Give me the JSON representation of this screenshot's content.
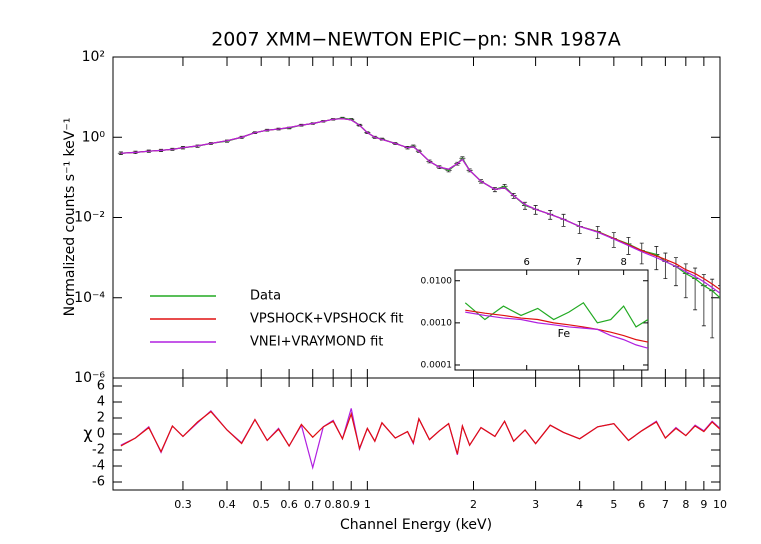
{
  "chart_data": [
    {
      "type": "line",
      "title": "2007 XMM−NEWTON EPIC−pn: SNR 1987A",
      "ylabel": "Normalized counts s⁻¹ keV⁻¹",
      "log_x": true,
      "log_y": true,
      "xlim": [
        0.19,
        10
      ],
      "ylim": [
        1e-06,
        100
      ],
      "yticks": [
        {
          "value": 1e-06,
          "label": "10⁻⁶"
        },
        {
          "value": 0.0001,
          "label": "10⁻⁴"
        },
        {
          "value": 0.01,
          "label": "10⁻²"
        },
        {
          "value": 1,
          "label": "10⁰"
        },
        {
          "value": 100,
          "label": "10²"
        }
      ],
      "legend": "lower left",
      "x": [
        0.2,
        0.22,
        0.24,
        0.26,
        0.28,
        0.3,
        0.33,
        0.36,
        0.4,
        0.44,
        0.48,
        0.52,
        0.56,
        0.6,
        0.65,
        0.7,
        0.75,
        0.8,
        0.85,
        0.9,
        0.95,
        1.0,
        1.05,
        1.1,
        1.2,
        1.3,
        1.35,
        1.4,
        1.5,
        1.6,
        1.7,
        1.8,
        1.86,
        1.95,
        2.1,
        2.3,
        2.45,
        2.6,
        2.8,
        3.0,
        3.3,
        3.6,
        4.0,
        4.5,
        5.0,
        5.5,
        6.0,
        6.6,
        7.0,
        7.5,
        8.0,
        8.5,
        9.0,
        9.5,
        10.0
      ],
      "series": [
        {
          "name": "Data",
          "color": "#22aa22",
          "values": [
            0.4,
            0.42,
            0.45,
            0.47,
            0.5,
            0.55,
            0.6,
            0.7,
            0.8,
            1.0,
            1.3,
            1.5,
            1.6,
            1.7,
            2.0,
            2.2,
            2.5,
            2.8,
            3.0,
            2.8,
            2.0,
            1.3,
            1.0,
            0.9,
            0.7,
            0.55,
            0.6,
            0.45,
            0.25,
            0.18,
            0.15,
            0.22,
            0.3,
            0.15,
            0.08,
            0.05,
            0.06,
            0.035,
            0.02,
            0.016,
            0.012,
            0.009,
            0.006,
            0.0045,
            0.003,
            0.0022,
            0.0015,
            0.0012,
            0.0008,
            0.0006,
            0.0004,
            0.0003,
            0.0002,
            0.00015,
            0.0001
          ],
          "errors": [
            0.03,
            0.03,
            0.03,
            0.03,
            0.03,
            0.04,
            0.04,
            0.04,
            0.05,
            0.06,
            0.07,
            0.08,
            0.08,
            0.08,
            0.1,
            0.1,
            0.12,
            0.13,
            0.14,
            0.13,
            0.1,
            0.07,
            0.06,
            0.05,
            0.04,
            0.04,
            0.04,
            0.03,
            0.02,
            0.015,
            0.013,
            0.018,
            0.025,
            0.013,
            0.008,
            0.006,
            0.007,
            0.005,
            0.004,
            0.004,
            0.003,
            0.003,
            0.002,
            0.0015,
            0.0012,
            0.001,
            0.0008,
            0.0007,
            0.0005,
            0.0004,
            0.0003,
            0.00025,
            0.00018,
            0.00014,
            0.0001
          ]
        },
        {
          "name": "VPSHOCK+VPSHOCK fit",
          "color": "#e01010",
          "values": [
            0.4,
            0.42,
            0.45,
            0.47,
            0.5,
            0.55,
            0.61,
            0.7,
            0.82,
            1.0,
            1.3,
            1.5,
            1.6,
            1.75,
            2.0,
            2.2,
            2.5,
            2.8,
            2.9,
            2.7,
            2.0,
            1.3,
            1.0,
            0.88,
            0.7,
            0.55,
            0.58,
            0.45,
            0.25,
            0.18,
            0.16,
            0.22,
            0.28,
            0.15,
            0.08,
            0.05,
            0.055,
            0.035,
            0.021,
            0.016,
            0.012,
            0.009,
            0.006,
            0.0044,
            0.003,
            0.0021,
            0.0015,
            0.0011,
            0.0009,
            0.0007,
            0.0005,
            0.0004,
            0.0003,
            0.00022,
            0.00016
          ]
        },
        {
          "name": "VNEI+VRAYMOND fit",
          "color": "#b020e0",
          "values": [
            0.4,
            0.42,
            0.45,
            0.47,
            0.5,
            0.55,
            0.61,
            0.7,
            0.82,
            1.0,
            1.3,
            1.5,
            1.6,
            1.75,
            2.0,
            2.2,
            2.5,
            2.8,
            2.9,
            2.7,
            2.0,
            1.3,
            1.0,
            0.88,
            0.7,
            0.55,
            0.58,
            0.45,
            0.25,
            0.18,
            0.16,
            0.22,
            0.28,
            0.15,
            0.08,
            0.05,
            0.055,
            0.035,
            0.021,
            0.016,
            0.012,
            0.009,
            0.006,
            0.0043,
            0.0029,
            0.002,
            0.0014,
            0.001,
            0.0008,
            0.0006,
            0.00045,
            0.00034,
            0.00025,
            0.00018,
            0.00013
          ]
        }
      ]
    },
    {
      "type": "line",
      "xlabel": "Channel Energy (keV)",
      "ylabel": "χ",
      "log_x": true,
      "xlim": [
        0.19,
        10
      ],
      "ylim": [
        -7,
        7
      ],
      "yticks": [
        -6,
        -4,
        -2,
        0,
        2,
        4,
        6
      ],
      "xticks": [
        0.3,
        0.4,
        0.5,
        0.6,
        0.7,
        0.8,
        0.9,
        1,
        2,
        3,
        4,
        5,
        6,
        7,
        8,
        9,
        10
      ],
      "x": [
        0.2,
        0.22,
        0.24,
        0.26,
        0.28,
        0.3,
        0.33,
        0.36,
        0.4,
        0.44,
        0.48,
        0.52,
        0.56,
        0.6,
        0.65,
        0.7,
        0.75,
        0.8,
        0.85,
        0.9,
        0.95,
        1.0,
        1.05,
        1.1,
        1.2,
        1.3,
        1.35,
        1.4,
        1.5,
        1.6,
        1.7,
        1.8,
        1.86,
        1.95,
        2.1,
        2.3,
        2.45,
        2.6,
        2.8,
        3.0,
        3.3,
        3.6,
        4.0,
        4.5,
        5.0,
        5.5,
        6.0,
        6.6,
        7.0,
        7.5,
        8.0,
        8.5,
        9.0,
        9.5,
        10.0
      ],
      "series": [
        {
          "color": "#b020e0",
          "values": [
            -1.4,
            -0.5,
            0.9,
            -2.3,
            1.0,
            -0.3,
            1.4,
            2.9,
            0.5,
            -1.1,
            1.8,
            -0.8,
            0.7,
            -1.5,
            1.1,
            -4.2,
            0.9,
            1.7,
            -0.6,
            3.2,
            -1.9,
            0.7,
            -0.9,
            1.4,
            -0.5,
            0.3,
            -1.2,
            1.9,
            -0.7,
            0.4,
            1.3,
            -2.6,
            1.0,
            -1.4,
            0.8,
            -0.3,
            1.6,
            -0.9,
            0.5,
            -1.2,
            1.1,
            0.2,
            -0.6,
            0.9,
            1.3,
            -0.8,
            0.4,
            1.6,
            -0.5,
            0.8,
            -0.2,
            1.1,
            0.4,
            1.6,
            0.7
          ]
        },
        {
          "color": "#e01010",
          "values": [
            -1.5,
            -0.5,
            0.8,
            -2.2,
            1.0,
            -0.3,
            1.5,
            2.8,
            0.5,
            -1.2,
            1.8,
            -0.8,
            0.6,
            -1.5,
            1.2,
            -0.4,
            0.9,
            1.6,
            -0.6,
            2.5,
            -1.8,
            0.7,
            -0.9,
            1.4,
            -0.5,
            0.3,
            -1.1,
            1.9,
            -0.7,
            0.4,
            1.3,
            -2.5,
            1.0,
            -1.4,
            0.8,
            -0.3,
            1.6,
            -0.9,
            0.5,
            -1.2,
            1.1,
            0.2,
            -0.6,
            0.9,
            1.3,
            -0.8,
            0.4,
            1.5,
            -0.5,
            0.7,
            -0.2,
            1.0,
            0.3,
            1.5,
            0.6
          ]
        }
      ]
    },
    {
      "type": "line",
      "log_x": true,
      "log_y": true,
      "xlim": [
        4.85,
        8.6
      ],
      "ylim": [
        7.6e-05,
        0.018
      ],
      "xticks": [
        6,
        7,
        8
      ],
      "yticks": [
        {
          "value": 0.0001,
          "label": "0.0001"
        },
        {
          "value": 0.001,
          "label": "0.0010"
        },
        {
          "value": 0.01,
          "label": "0.0100"
        }
      ],
      "annotation": {
        "text": "Fe",
        "x": 6.7,
        "y": 0.00055
      },
      "x": [
        5.0,
        5.3,
        5.6,
        5.9,
        6.2,
        6.5,
        6.8,
        7.1,
        7.4,
        7.7,
        8.0,
        8.3,
        8.6
      ],
      "series": [
        {
          "color": "#22aa22",
          "values": [
            0.003,
            0.0012,
            0.0025,
            0.0015,
            0.0022,
            0.0012,
            0.0018,
            0.003,
            0.001,
            0.0012,
            0.0025,
            0.0008,
            0.0012
          ]
        },
        {
          "color": "#e01010",
          "values": [
            0.002,
            0.0017,
            0.0015,
            0.0013,
            0.0012,
            0.001,
            0.0009,
            0.0008,
            0.0007,
            0.0006,
            0.0005,
            0.0004,
            0.00035
          ]
        },
        {
          "color": "#b020e0",
          "values": [
            0.0018,
            0.0015,
            0.0013,
            0.0012,
            0.001,
            0.0009,
            0.0008,
            0.00075,
            0.0007,
            0.0005,
            0.0004,
            0.0003,
            0.00025
          ]
        }
      ]
    }
  ]
}
